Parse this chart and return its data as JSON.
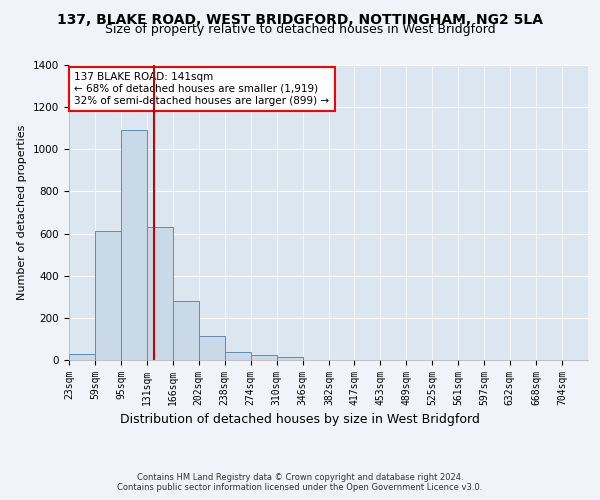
{
  "title_line1": "137, BLAKE ROAD, WEST BRIDGFORD, NOTTINGHAM, NG2 5LA",
  "title_line2": "Size of property relative to detached houses in West Bridgford",
  "xlabel": "Distribution of detached houses by size in West Bridgford",
  "ylabel": "Number of detached properties",
  "footer_line1": "Contains HM Land Registry data © Crown copyright and database right 2024.",
  "footer_line2": "Contains public sector information licensed under the Open Government Licence v3.0.",
  "annotation_line1": "137 BLAKE ROAD: 141sqm",
  "annotation_line2": "← 68% of detached houses are smaller (1,919)",
  "annotation_line3": "32% of semi-detached houses are larger (899) →",
  "red_line_x": 141,
  "bar_edges": [
    23,
    59,
    95,
    131,
    166,
    202,
    238,
    274,
    310,
    346,
    382,
    417,
    453,
    489,
    525,
    561,
    597,
    632,
    668,
    704,
    740
  ],
  "bar_heights": [
    30,
    610,
    1090,
    630,
    280,
    115,
    38,
    22,
    12,
    0,
    0,
    0,
    0,
    0,
    0,
    0,
    0,
    0,
    0,
    0
  ],
  "bar_color": "#c9d9e8",
  "bar_edgecolor": "#5b8db8",
  "red_line_color": "#cc0000",
  "background_color": "#f0f4f8",
  "plot_bg_color": "#dce6f0",
  "grid_color": "#ffffff",
  "ylim": [
    0,
    1400
  ],
  "yticks": [
    0,
    200,
    400,
    600,
    800,
    1000,
    1200,
    1400
  ],
  "title_fontsize": 10,
  "subtitle_fontsize": 9,
  "ylabel_fontsize": 8,
  "xlabel_fontsize": 9,
  "tick_fontsize": 7,
  "footer_fontsize": 6,
  "annotation_fontsize": 7.5
}
